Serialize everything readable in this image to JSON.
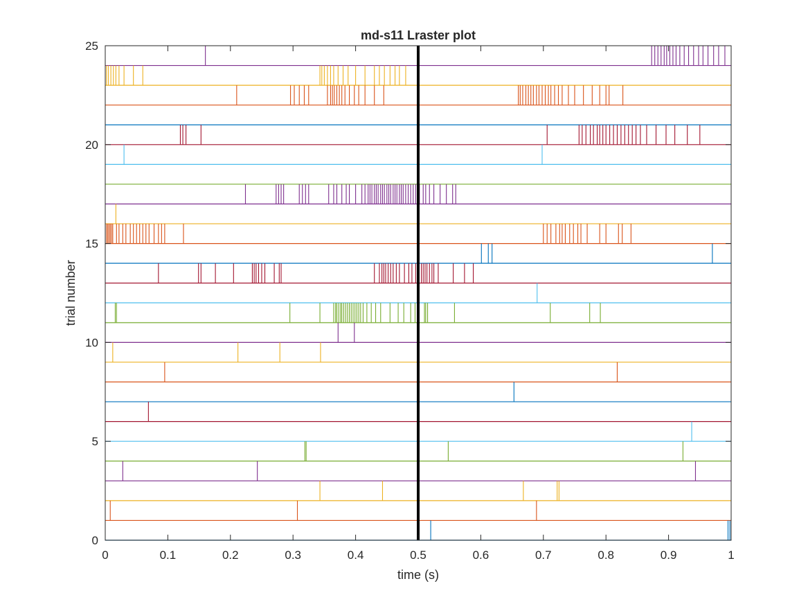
{
  "chart_data": {
    "type": "raster",
    "title": "md-s11 Lraster plot",
    "xlabel": "time (s)",
    "ylabel": "trial number",
    "xlim": [
      0,
      1
    ],
    "ylim": [
      0,
      25
    ],
    "xticks": [
      "0",
      "0.1",
      "0.2",
      "0.3",
      "0.4",
      "0.5",
      "0.6",
      "0.7",
      "0.8",
      "0.9",
      "1"
    ],
    "yticks": [
      "0",
      "5",
      "10",
      "15",
      "20",
      "25"
    ],
    "xtick_values": [
      0,
      0.1,
      0.2,
      0.3,
      0.4,
      0.5,
      0.6,
      0.7,
      0.8,
      0.9,
      1
    ],
    "ytick_values": [
      0,
      5,
      10,
      15,
      20,
      25
    ],
    "event_line_x": 0.5,
    "event_line_color": "#000000",
    "colors": [
      "#0072BD",
      "#D95319",
      "#EDB120",
      "#7E2F8E",
      "#77AC30",
      "#4DBEEE",
      "#A2142F"
    ],
    "trials": [
      {
        "trial": 1,
        "spikes": [
          0.52,
          0.995,
          0.998
        ]
      },
      {
        "trial": 2,
        "spikes": [
          0.008,
          0.307,
          0.689
        ]
      },
      {
        "trial": 3,
        "spikes": [
          0.343,
          0.443,
          0.668,
          0.722,
          0.725
        ]
      },
      {
        "trial": 4,
        "spikes": [
          0.028,
          0.243,
          0.943
        ]
      },
      {
        "trial": 5,
        "spikes": [
          0.319,
          0.321,
          0.548,
          0.923
        ]
      },
      {
        "trial": 6,
        "spikes": [
          0.937
        ]
      },
      {
        "trial": 7,
        "spikes": [
          0.069
        ]
      },
      {
        "trial": 8,
        "spikes": [
          0.653
        ]
      },
      {
        "trial": 9,
        "spikes": [
          0.095,
          0.818
        ]
      },
      {
        "trial": 10,
        "spikes": [
          0.012,
          0.212,
          0.279,
          0.344
        ]
      },
      {
        "trial": 11,
        "spikes": [
          0.372,
          0.398
        ]
      },
      {
        "trial": 12,
        "spikes": [
          0.016,
          0.018,
          0.295,
          0.343,
          0.365,
          0.368,
          0.37,
          0.373,
          0.376,
          0.378,
          0.381,
          0.384,
          0.387,
          0.39,
          0.393,
          0.396,
          0.399,
          0.402,
          0.405,
          0.408,
          0.412,
          0.418,
          0.425,
          0.432,
          0.44,
          0.455,
          0.468,
          0.477,
          0.488,
          0.495,
          0.51,
          0.512,
          0.515,
          0.558,
          0.711,
          0.774,
          0.791
        ]
      },
      {
        "trial": 13,
        "spikes": [
          0.69
        ]
      },
      {
        "trial": 14,
        "spikes": [
          0.085,
          0.149,
          0.153,
          0.176,
          0.205,
          0.235,
          0.238,
          0.241,
          0.245,
          0.25,
          0.255,
          0.27,
          0.278,
          0.281,
          0.43,
          0.438,
          0.442,
          0.445,
          0.448,
          0.452,
          0.456,
          0.46,
          0.465,
          0.47,
          0.478,
          0.485,
          0.49,
          0.496,
          0.505,
          0.508,
          0.511,
          0.514,
          0.518,
          0.522,
          0.525,
          0.532,
          0.556,
          0.574,
          0.588
        ]
      },
      {
        "trial": 15,
        "spikes": [
          0.601,
          0.612,
          0.618,
          0.97
        ]
      },
      {
        "trial": 16,
        "spikes": [
          0.002,
          0.004,
          0.006,
          0.008,
          0.01,
          0.012,
          0.018,
          0.022,
          0.028,
          0.033,
          0.04,
          0.045,
          0.05,
          0.055,
          0.06,
          0.065,
          0.07,
          0.078,
          0.085,
          0.09,
          0.095,
          0.125,
          0.7,
          0.706,
          0.712,
          0.72,
          0.726,
          0.73,
          0.735,
          0.742,
          0.748,
          0.755,
          0.76,
          0.77,
          0.79,
          0.8,
          0.82,
          0.826,
          0.84
        ]
      },
      {
        "trial": 17,
        "spikes": [
          0.017
        ]
      },
      {
        "trial": 18,
        "spikes": [
          0.224,
          0.273,
          0.277,
          0.281,
          0.285,
          0.31,
          0.315,
          0.32,
          0.325,
          0.357,
          0.365,
          0.37,
          0.378,
          0.385,
          0.39,
          0.4,
          0.41,
          0.415,
          0.42,
          0.423,
          0.426,
          0.43,
          0.433,
          0.436,
          0.44,
          0.443,
          0.446,
          0.45,
          0.453,
          0.456,
          0.46,
          0.463,
          0.466,
          0.47,
          0.473,
          0.476,
          0.48,
          0.484,
          0.488,
          0.492,
          0.496,
          0.502,
          0.508,
          0.512,
          0.518,
          0.525,
          0.535,
          0.545,
          0.555,
          0.56
        ]
      },
      {
        "trial": 19,
        "spikes": []
      },
      {
        "trial": 20,
        "spikes": [
          0.03,
          0.698
        ]
      },
      {
        "trial": 21,
        "spikes": [
          0.12,
          0.124,
          0.129,
          0.153,
          0.706,
          0.757,
          0.762,
          0.768,
          0.775,
          0.78,
          0.786,
          0.79,
          0.795,
          0.8,
          0.806,
          0.812,
          0.818,
          0.824,
          0.83,
          0.836,
          0.842,
          0.848,
          0.855,
          0.865,
          0.88,
          0.896,
          0.91,
          0.93,
          0.95
        ]
      },
      {
        "trial": 22,
        "spikes": []
      },
      {
        "trial": 23,
        "spikes": [
          0.21,
          0.296,
          0.302,
          0.31,
          0.318,
          0.325,
          0.355,
          0.36,
          0.363,
          0.366,
          0.37,
          0.374,
          0.378,
          0.383,
          0.39,
          0.398,
          0.405,
          0.415,
          0.43,
          0.445,
          0.66,
          0.663,
          0.667,
          0.672,
          0.676,
          0.68,
          0.684,
          0.689,
          0.693,
          0.698,
          0.703,
          0.708,
          0.712,
          0.718,
          0.724,
          0.73,
          0.74,
          0.75,
          0.764,
          0.778,
          0.79,
          0.8,
          0.805,
          0.827
        ]
      },
      {
        "trial": 24,
        "spikes": [
          0.002,
          0.005,
          0.009,
          0.013,
          0.017,
          0.022,
          0.03,
          0.045,
          0.06,
          0.343,
          0.346,
          0.35,
          0.355,
          0.36,
          0.365,
          0.372,
          0.38,
          0.388,
          0.4,
          0.415,
          0.43,
          0.438,
          0.446,
          0.455,
          0.463,
          0.47,
          0.48
        ]
      },
      {
        "trial": 25,
        "spikes": [
          0.16,
          0.873,
          0.878,
          0.883,
          0.888,
          0.893,
          0.897,
          0.902,
          0.907,
          0.912,
          0.918,
          0.925,
          0.932,
          0.94,
          0.948,
          0.955,
          0.963,
          0.972,
          0.98,
          0.99
        ]
      }
    ]
  }
}
